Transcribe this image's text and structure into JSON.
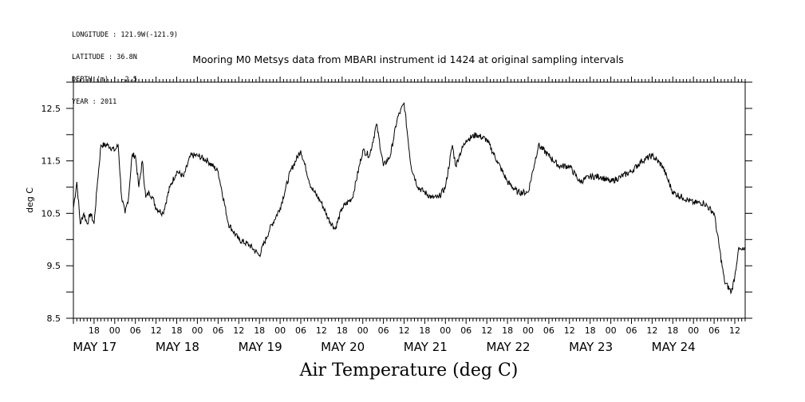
{
  "metadata": [
    "LONGITUDE : 121.9W(-121.9)",
    "LATITUDE : 36.8N",
    "DEPTH (m) : -2.5",
    "YEAR : 2011"
  ],
  "chart_data": {
    "type": "line",
    "title": "Mooring M0 Metsys data from MBARI instrument id 1424 at original sampling intervals",
    "xlabel": "Air Temperature (deg C)",
    "ylabel": "deg C",
    "ylim": [
      8.5,
      13.0
    ],
    "yticks": [
      "8.5",
      "9.5",
      "10.5",
      "11.5",
      "12.5"
    ],
    "xlim": [
      "2011-05-16 12:00",
      "2011-05-24 15:00"
    ],
    "hour_ticks": [
      "18",
      "00",
      "06",
      "12",
      "18",
      "00",
      "06",
      "12",
      "18",
      "00",
      "06",
      "12",
      "18",
      "00",
      "06",
      "12",
      "18",
      "00",
      "06",
      "12",
      "18",
      "00",
      "06",
      "12",
      "18",
      "00",
      "06",
      "12",
      "18",
      "00",
      "06",
      "12"
    ],
    "day_labels": [
      "MAY 17",
      "MAY 18",
      "MAY 19",
      "MAY 20",
      "MAY 21",
      "MAY 22",
      "MAY 23",
      "MAY 24"
    ],
    "grid": false,
    "series": [
      {
        "x": [
          "2011-05-16 12:00",
          "2011-05-16 13:00",
          "2011-05-16 14:00",
          "2011-05-16 15:00",
          "2011-05-16 16:00",
          "2011-05-16 17:00",
          "2011-05-16 18:00",
          "2011-05-16 19:00",
          "2011-05-16 20:00",
          "2011-05-16 22:00",
          "2011-05-17 00:00",
          "2011-05-17 01:00",
          "2011-05-17 02:00",
          "2011-05-17 03:00",
          "2011-05-17 04:00",
          "2011-05-17 05:00",
          "2011-05-17 06:00",
          "2011-05-17 07:00",
          "2011-05-17 08:00",
          "2011-05-17 09:00",
          "2011-05-17 10:00",
          "2011-05-17 11:00",
          "2011-05-17 12:00",
          "2011-05-17 14:00",
          "2011-05-17 16:00",
          "2011-05-17 18:00",
          "2011-05-17 20:00",
          "2011-05-17 22:00",
          "2011-05-18 00:00",
          "2011-05-18 03:00",
          "2011-05-18 06:00",
          "2011-05-18 09:00",
          "2011-05-18 12:00",
          "2011-05-18 15:00",
          "2011-05-18 18:00",
          "2011-05-18 21:00",
          "2011-05-19 00:00",
          "2011-05-19 03:00",
          "2011-05-19 06:00",
          "2011-05-19 09:00",
          "2011-05-19 10:00",
          "2011-05-19 12:00",
          "2011-05-19 14:00",
          "2011-05-19 16:00",
          "2011-05-19 18:00",
          "2011-05-19 21:00",
          "2011-05-20 00:00",
          "2011-05-20 02:00",
          "2011-05-20 04:00",
          "2011-05-20 06:00",
          "2011-05-20 08:00",
          "2011-05-20 10:00",
          "2011-05-20 12:00",
          "2011-05-20 14:00",
          "2011-05-20 16:00",
          "2011-05-20 18:00",
          "2011-05-20 20:00",
          "2011-05-20 22:00",
          "2011-05-21 00:00",
          "2011-05-21 02:00",
          "2011-05-21 03:00",
          "2011-05-21 04:00",
          "2011-05-21 06:00",
          "2011-05-21 09:00",
          "2011-05-21 12:00",
          "2011-05-21 15:00",
          "2011-05-21 18:00",
          "2011-05-21 21:00",
          "2011-05-22 00:00",
          "2011-05-22 03:00",
          "2011-05-22 06:00",
          "2011-05-22 09:00",
          "2011-05-22 12:00",
          "2011-05-22 15:00",
          "2011-05-22 18:00",
          "2011-05-22 21:00",
          "2011-05-23 00:00",
          "2011-05-23 03:00",
          "2011-05-23 06:00",
          "2011-05-23 09:00",
          "2011-05-23 12:00",
          "2011-05-23 15:00",
          "2011-05-23 18:00",
          "2011-05-23 21:00",
          "2011-05-24 00:00",
          "2011-05-24 03:00",
          "2011-05-24 06:00",
          "2011-05-24 09:00",
          "2011-05-24 11:00",
          "2011-05-24 12:00",
          "2011-05-24 13:00",
          "2011-05-24 14:00",
          "2011-05-24 15:00"
        ],
        "y": [
          10.6,
          11.1,
          10.3,
          10.5,
          10.3,
          10.5,
          10.3,
          11.1,
          11.8,
          11.8,
          11.7,
          11.8,
          10.8,
          10.5,
          10.8,
          11.6,
          11.6,
          11.0,
          11.5,
          10.8,
          10.9,
          10.8,
          10.6,
          10.5,
          11.0,
          11.3,
          11.2,
          11.6,
          11.6,
          11.5,
          11.3,
          10.3,
          10.0,
          9.9,
          9.7,
          10.2,
          10.6,
          11.3,
          11.7,
          11.0,
          10.9,
          10.7,
          10.4,
          10.2,
          10.6,
          10.8,
          11.7,
          11.6,
          12.2,
          11.4,
          11.6,
          12.3,
          12.6,
          11.4,
          11.0,
          10.9,
          10.8,
          10.8,
          11.0,
          11.8,
          11.4,
          11.6,
          11.9,
          12.0,
          11.9,
          11.5,
          11.1,
          10.9,
          10.9,
          11.8,
          11.6,
          11.4,
          11.4,
          11.1,
          11.2,
          11.2,
          11.1,
          11.2,
          11.3,
          11.5,
          11.6,
          11.4,
          10.9,
          10.8,
          10.7,
          10.7,
          10.5,
          9.2,
          9.0,
          9.3,
          9.8,
          9.8,
          9.8
        ]
      }
    ]
  }
}
